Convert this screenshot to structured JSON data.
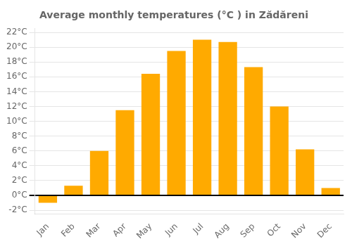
{
  "chart_data": {
    "type": "bar",
    "title": "Average monthly temperatures (°C ) in Zădăreni",
    "categories": [
      "Jan",
      "Feb",
      "Mar",
      "Apr",
      "May",
      "Jun",
      "Jul",
      "Aug",
      "Sep",
      "Oct",
      "Nov",
      "Dec"
    ],
    "values": [
      -1.0,
      1.3,
      6.0,
      11.5,
      16.4,
      19.5,
      21.0,
      20.7,
      17.3,
      12.0,
      6.2,
      1.0
    ],
    "color": "#FFAA00",
    "ylim": [
      -2.5,
      22.5
    ],
    "yticks": [
      {
        "value": -2,
        "label": "-2°C"
      },
      {
        "value": 0,
        "label": "0°C"
      },
      {
        "value": 2,
        "label": "2°C"
      },
      {
        "value": 4,
        "label": "4°C"
      },
      {
        "value": 6,
        "label": "6°C"
      },
      {
        "value": 8,
        "label": "8°C"
      },
      {
        "value": 10,
        "label": "10°C"
      },
      {
        "value": 12,
        "label": "12°C"
      },
      {
        "value": 14,
        "label": "14°C"
      },
      {
        "value": 16,
        "label": "16°C"
      },
      {
        "value": 18,
        "label": "18°C"
      },
      {
        "value": 20,
        "label": "20°C"
      },
      {
        "value": 22,
        "label": "22°C"
      }
    ],
    "grid": true
  }
}
